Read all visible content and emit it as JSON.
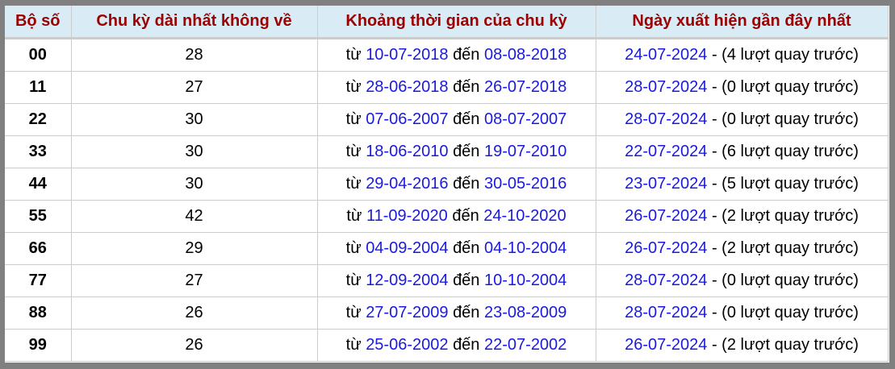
{
  "headers": [
    "Bộ số",
    "Chu kỳ dài nhất không về",
    "Khoảng thời gian của chu kỳ",
    "Ngày xuất hiện gần đây nhất"
  ],
  "labels": {
    "from": "từ",
    "to": "đến",
    "dash": " - ",
    "before_suffix": " lượt quay trước)",
    "open_paren": "("
  },
  "rows": [
    {
      "num": "00",
      "cycle": "28",
      "start": "10-07-2018",
      "end": "08-08-2018",
      "last": "24-07-2024",
      "ago": "4"
    },
    {
      "num": "11",
      "cycle": "27",
      "start": "28-06-2018",
      "end": "26-07-2018",
      "last": "28-07-2024",
      "ago": "0"
    },
    {
      "num": "22",
      "cycle": "30",
      "start": "07-06-2007",
      "end": "08-07-2007",
      "last": "28-07-2024",
      "ago": "0"
    },
    {
      "num": "33",
      "cycle": "30",
      "start": "18-06-2010",
      "end": "19-07-2010",
      "last": "22-07-2024",
      "ago": "6"
    },
    {
      "num": "44",
      "cycle": "30",
      "start": "29-04-2016",
      "end": "30-05-2016",
      "last": "23-07-2024",
      "ago": "5"
    },
    {
      "num": "55",
      "cycle": "42",
      "start": "11-09-2020",
      "end": "24-10-2020",
      "last": "26-07-2024",
      "ago": "2"
    },
    {
      "num": "66",
      "cycle": "29",
      "start": "04-09-2004",
      "end": "04-10-2004",
      "last": "26-07-2024",
      "ago": "2"
    },
    {
      "num": "77",
      "cycle": "27",
      "start": "12-09-2004",
      "end": "10-10-2004",
      "last": "28-07-2024",
      "ago": "0"
    },
    {
      "num": "88",
      "cycle": "26",
      "start": "27-07-2009",
      "end": "23-08-2009",
      "last": "28-07-2024",
      "ago": "0"
    },
    {
      "num": "99",
      "cycle": "26",
      "start": "25-06-2002",
      "end": "22-07-2002",
      "last": "26-07-2024",
      "ago": "2"
    }
  ],
  "colors": {
    "header_text": "#9c0000",
    "header_bg": "#d9ebf5",
    "date_link": "#1a1adf"
  }
}
